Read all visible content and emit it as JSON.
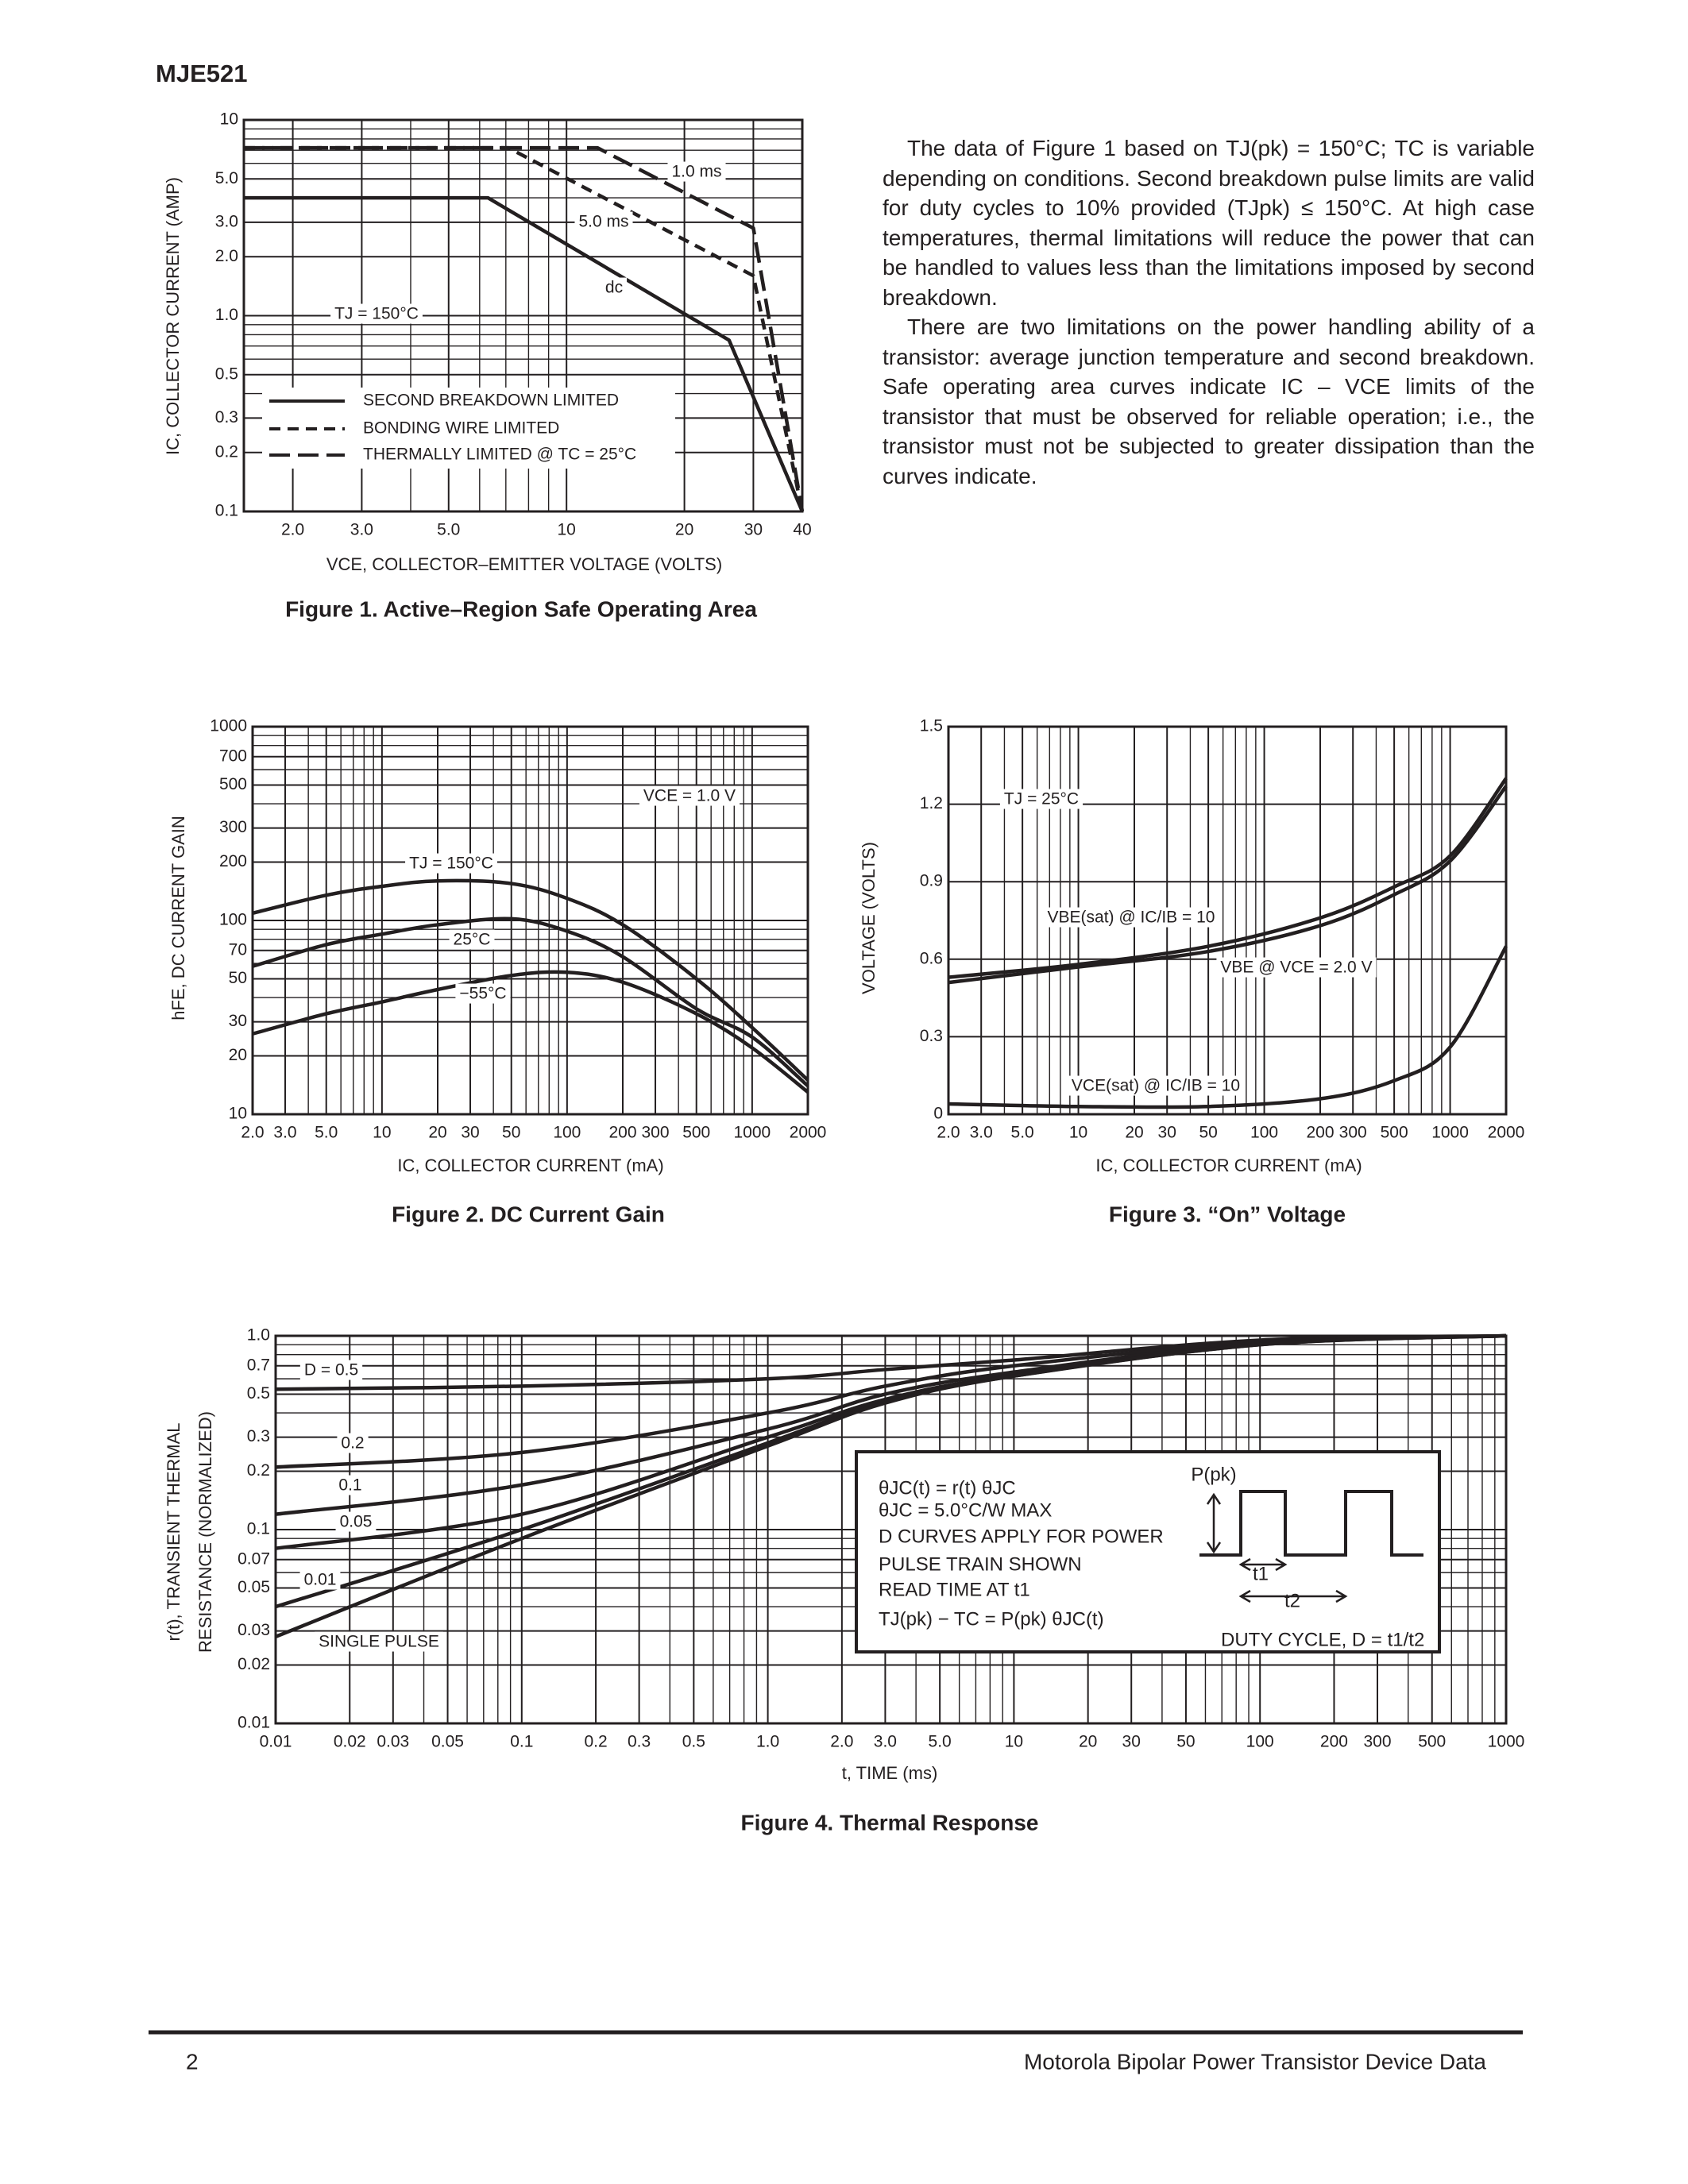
{
  "header": {
    "title": "MJE521"
  },
  "text": {
    "paragraphs": [
      "The data of Figure 1 based on TJ(pk) = 150°C; TC is variable depending on conditions. Second breakdown pulse limits are valid for duty cycles to 10% provided (TJpk) ≤ 150°C. At high case temperatures, thermal limitations will reduce the power that can be handled to values less than the limitations imposed by second breakdown.",
      "There are two limitations on the power handling ability of a transistor: average junction temperature and second breakdown. Safe operating area curves indicate IC – VCE limits of the transistor that must be observed for reliable operation; i.e., the transistor must not be subjected to greater dissipation than the curves indicate."
    ]
  },
  "chart_data": [
    {
      "type": "line",
      "title": "Figure 1. Active–Region Safe Operating Area",
      "xlabel": "VCE, COLLECTOR–EMITTER VOLTAGE (VOLTS)",
      "ylabel": [
        "IC, COLLECTOR CURRENT (AMP)"
      ],
      "xlog": true,
      "ylog": true,
      "grid": true,
      "smooth": false,
      "color": "#231f20",
      "xlim": [
        1.5,
        40
      ],
      "ylim": [
        0.1,
        10
      ],
      "xticks": [
        {
          "value": 2,
          "label": "2.0"
        },
        {
          "value": 3,
          "label": "3.0"
        },
        {
          "value": 5,
          "label": "5.0"
        },
        10,
        20,
        30,
        40
      ],
      "yticks": [
        0.1,
        0.2,
        0.3,
        0.5,
        {
          "value": 1,
          "label": "1.0"
        },
        {
          "value": 2,
          "label": "2.0"
        },
        {
          "value": 3,
          "label": "3.0"
        },
        {
          "value": 5,
          "label": "5.0"
        },
        10
      ],
      "series": [
        {
          "name": "1.0 ms",
          "dash": "long-dash",
          "x": [
            1.5,
            12,
            30,
            40
          ],
          "values": [
            7.2,
            7.2,
            2.8,
            0.1
          ]
        },
        {
          "name": "5.0 ms",
          "dash": "short-dash",
          "x": [
            1.5,
            7.1,
            30,
            40
          ],
          "values": [
            7.2,
            7.2,
            1.6,
            0.1
          ]
        },
        {
          "name": "dc",
          "dash": "solid",
          "x": [
            1.5,
            6.3,
            26,
            40
          ],
          "values": [
            4.0,
            4.0,
            0.75,
            0.1
          ]
        }
      ],
      "annotations": [
        "TJ = 150°C"
      ],
      "legend": [
        {
          "label": "SECOND BREAKDOWN LIMITED",
          "dash": "solid"
        },
        {
          "label": "BONDING WIRE LIMITED",
          "dash": "short-dash"
        },
        {
          "label": "THERMALLY LIMITED @ TC = 25°C",
          "dash": "long-dash"
        }
      ]
    },
    {
      "type": "line",
      "title": "Figure 2. DC Current Gain",
      "xlabel": "IC, COLLECTOR CURRENT (mA)",
      "ylabel": [
        "hFE, DC CURRENT GAIN"
      ],
      "xlog": true,
      "ylog": true,
      "grid": true,
      "smooth": true,
      "color": "#231f20",
      "xlim": [
        2,
        2000
      ],
      "ylim": [
        10,
        1000
      ],
      "xticks": [
        {
          "value": 2,
          "label": "2.0"
        },
        {
          "value": 3,
          "label": "3.0"
        },
        {
          "value": 5,
          "label": "5.0"
        },
        10,
        20,
        30,
        50,
        100,
        200,
        300,
        500,
        1000,
        2000
      ],
      "yticks": [
        10,
        20,
        30,
        50,
        70,
        100,
        200,
        300,
        500,
        700,
        1000
      ],
      "x": [
        2,
        5,
        10,
        20,
        50,
        100,
        200,
        500,
        1000,
        2000
      ],
      "series": [
        {
          "name": "TJ = 150°C",
          "dash": "solid",
          "values": [
            109,
            135,
            150,
            160,
            155,
            130,
            95,
            50,
            28,
            15
          ]
        },
        {
          "name": "25°C",
          "dash": "solid",
          "values": [
            58,
            75,
            85,
            95,
            102,
            88,
            65,
            35,
            25,
            14
          ]
        },
        {
          "name": "−55°C",
          "dash": "solid",
          "values": [
            26,
            33,
            38,
            44,
            52,
            54,
            48,
            33,
            22,
            13
          ]
        }
      ],
      "annotations": [
        "VCE = 1.0 V"
      ]
    },
    {
      "type": "line",
      "title": "Figure 3. “On” Voltage",
      "xlabel": "IC, COLLECTOR CURRENT (mA)",
      "ylabel": [
        "VOLTAGE (VOLTS)"
      ],
      "xlog": true,
      "ylog": false,
      "grid": true,
      "smooth": true,
      "color": "#231f20",
      "xlim": [
        2,
        2000
      ],
      "ylim": [
        0,
        1.5
      ],
      "xticks": [
        {
          "value": 2,
          "label": "2.0"
        },
        {
          "value": 3,
          "label": "3.0"
        },
        {
          "value": 5,
          "label": "5.0"
        },
        10,
        20,
        30,
        50,
        100,
        200,
        300,
        500,
        1000,
        2000
      ],
      "yticks": [
        0,
        0.3,
        0.6,
        0.9,
        1.2,
        1.5
      ],
      "x": [
        2,
        10,
        50,
        200,
        500,
        1000,
        2000
      ],
      "series": [
        {
          "name": "VBE(sat) @ IC/IB = 10",
          "dash": "solid",
          "values": [
            0.53,
            0.58,
            0.65,
            0.76,
            0.88,
            1.0,
            1.3
          ]
        },
        {
          "name": "VBE @ VCE = 2.0 V",
          "dash": "solid",
          "values": [
            0.51,
            0.57,
            0.63,
            0.73,
            0.85,
            0.98,
            1.27
          ]
        },
        {
          "name": "VCE(sat) @ IC/IB = 10",
          "dash": "solid",
          "values": [
            0.04,
            0.03,
            0.03,
            0.06,
            0.13,
            0.26,
            0.65
          ]
        }
      ],
      "annotations": [
        "TJ = 25°C"
      ]
    },
    {
      "type": "line",
      "title": "Figure 4. Thermal Response",
      "xlabel": "t, TIME (ms)",
      "ylabel": [
        "r(t), TRANSIENT THERMAL",
        "RESISTANCE (NORMALIZED)"
      ],
      "xlog": true,
      "ylog": true,
      "grid": true,
      "smooth": true,
      "color": "#231f20",
      "xlim": [
        0.01,
        1000
      ],
      "ylim": [
        0.01,
        1
      ],
      "xticks": [
        0.01,
        0.02,
        0.03,
        0.05,
        0.1,
        0.2,
        0.3,
        0.5,
        {
          "value": 1,
          "label": "1.0"
        },
        {
          "value": 2,
          "label": "2.0"
        },
        {
          "value": 3,
          "label": "3.0"
        },
        {
          "value": 5,
          "label": "5.0"
        },
        10,
        20,
        30,
        50,
        100,
        200,
        300,
        500,
        1000
      ],
      "yticks": [
        0.01,
        0.02,
        0.03,
        0.05,
        0.07,
        0.1,
        0.2,
        0.3,
        0.5,
        0.7,
        {
          "value": 1,
          "label": "1.0"
        }
      ],
      "x": [
        0.01,
        0.1,
        1,
        3,
        10,
        100,
        1000
      ],
      "series": [
        {
          "name": "D = 0.5",
          "dash": "solid",
          "values": [
            0.53,
            0.55,
            0.6,
            0.67,
            0.75,
            0.95,
            1.0
          ]
        },
        {
          "name": "0.2",
          "dash": "solid",
          "values": [
            0.21,
            0.25,
            0.4,
            0.55,
            0.7,
            0.93,
            1.0
          ]
        },
        {
          "name": "0.1",
          "dash": "solid",
          "values": [
            0.12,
            0.17,
            0.33,
            0.5,
            0.65,
            0.92,
            1.0
          ]
        },
        {
          "name": "0.05",
          "dash": "solid",
          "values": [
            0.08,
            0.12,
            0.3,
            0.47,
            0.63,
            0.91,
            1.0
          ]
        },
        {
          "name": "0.01",
          "dash": "solid",
          "values": [
            0.04,
            0.1,
            0.28,
            0.46,
            0.62,
            0.9,
            1.0
          ]
        },
        {
          "name": "SINGLE PULSE",
          "dash": "solid",
          "values": [
            0.028,
            0.09,
            0.27,
            0.45,
            0.62,
            0.9,
            1.0
          ]
        }
      ],
      "annotations": [
        "θJC(t) = r(t) θJC",
        "θJC = 5.0°C/W MAX",
        "D CURVES APPLY FOR POWER",
        "PULSE TRAIN SHOWN",
        "READ TIME AT t1",
        "TJ(pk) − TC = P(pk) θJC(t)",
        "P(pk)",
        "t1",
        "t2",
        "DUTY CYCLE, D = t1/t2"
      ]
    }
  ],
  "footer": {
    "page": "2",
    "source": "Motorola Bipolar Power Transistor Device Data"
  }
}
